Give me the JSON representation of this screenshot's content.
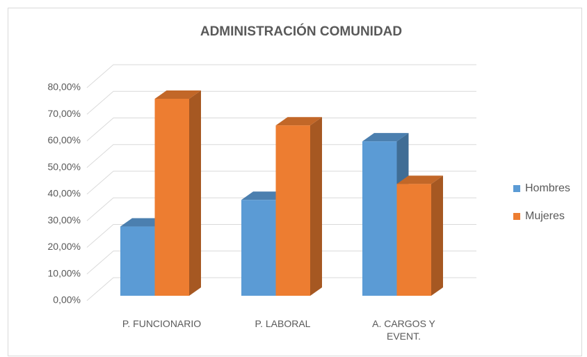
{
  "chart_data": {
    "type": "bar3d",
    "title": "ADMINISTRACIÓN COMUNIDAD",
    "categories": [
      "P. FUNCIONARIO",
      "P. LABORAL",
      "A. CARGOS Y EVENT."
    ],
    "series": [
      {
        "name": "Hombres",
        "color": "#5b9bd5",
        "values": [
          26,
          36,
          58
        ]
      },
      {
        "name": "Mujeres",
        "color": "#ed7d31",
        "values": [
          74,
          64,
          42
        ]
      }
    ],
    "ylim": [
      0,
      80
    ],
    "yticks": [
      {
        "value": 0,
        "label": "0,00%"
      },
      {
        "value": 10,
        "label": "10,00%"
      },
      {
        "value": 20,
        "label": "20,00%"
      },
      {
        "value": 30,
        "label": "30,00%"
      },
      {
        "value": 40,
        "label": "40,00%"
      },
      {
        "value": 50,
        "label": "50,00%"
      },
      {
        "value": 60,
        "label": "60,00%"
      },
      {
        "value": 70,
        "label": "70,00%"
      },
      {
        "value": 80,
        "label": "80,00%"
      }
    ],
    "grid": true,
    "legend": "right"
  }
}
